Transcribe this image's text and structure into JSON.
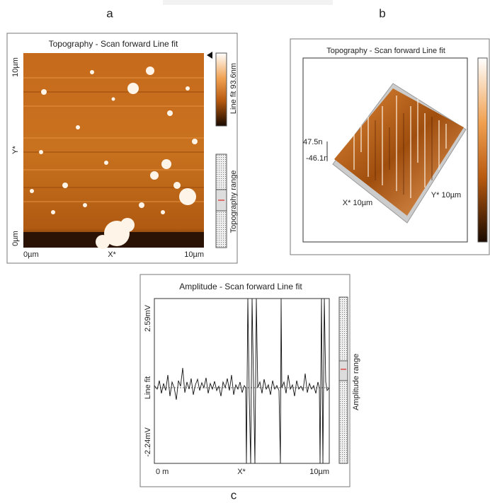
{
  "labels": {
    "a": "a",
    "b": "b",
    "c": "c"
  },
  "panel_a": {
    "title": "Topography - Scan forward   Line fit",
    "y_top": "10µm",
    "y_mid": "Y*",
    "y_bottom": "0µm",
    "x_left": "0µm",
    "x_mid": "X*",
    "x_right": "10µm",
    "colorbar_label": "Line fit 93.6nm",
    "range_label": "Topography range"
  },
  "panel_b": {
    "title": "Topography - Scan forward   Line fit",
    "z_top": "47.5n",
    "z_bottom": "-46.1n",
    "x_axis": "X* 10µm",
    "y_axis": "Y* 10µm"
  },
  "panel_c": {
    "title": "Amplitude - Scan forward   Line fit",
    "y_top": "2.59mV",
    "y_mid": "Line fit",
    "y_bottom": "-2.24mV",
    "x_left": "0 m",
    "x_mid": "X*",
    "x_right": "10µm",
    "range_label": "Amplitude range"
  }
}
